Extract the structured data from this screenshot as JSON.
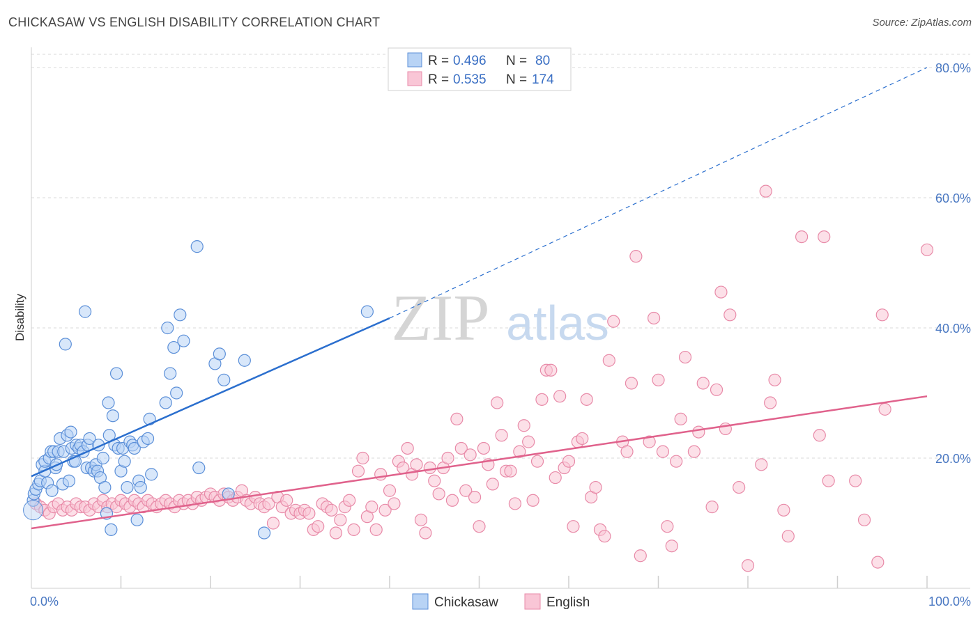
{
  "header": {
    "title": "CHICKASAW VS ENGLISH DISABILITY CORRELATION CHART",
    "source": "Source: ZipAtlas.com"
  },
  "watermark": {
    "zip": "ZIP",
    "atlas": "atlas"
  },
  "colors": {
    "blue_fill": "#b8d3f5",
    "blue_stroke": "#5b8fd8",
    "blue_line": "#2b6fce",
    "pink_fill": "#f9c6d6",
    "pink_stroke": "#e88aa8",
    "pink_line": "#e0628c",
    "grid": "#d8d8d8",
    "tick_text": "#4a78c2"
  },
  "legend": {
    "rows": [
      {
        "r_label": "R =",
        "r_value": "0.496",
        "n_label": "N =",
        "n_value": "80"
      },
      {
        "r_label": "R =",
        "r_value": "0.535",
        "n_label": "N =",
        "n_value": "174"
      }
    ]
  },
  "chart_data": {
    "type": "scatter",
    "title": "CHICKASAW VS ENGLISH DISABILITY CORRELATION CHART",
    "xlabel": "",
    "ylabel": "Disability",
    "xlim": [
      0,
      100
    ],
    "ylim": [
      0,
      82
    ],
    "x_tick_labels": [
      "0.0%",
      "100.0%"
    ],
    "y_ticks": [
      20,
      40,
      60,
      80
    ],
    "y_tick_labels": [
      "20.0%",
      "40.0%",
      "60.0%",
      "80.0%"
    ],
    "grid": true,
    "legend_position": "top-center",
    "series": [
      {
        "name": "Chickasaw",
        "R": 0.496,
        "N": 80,
        "trend": {
          "x0": 0,
          "y0": 17.2,
          "x1": 40,
          "y1": 41.5,
          "dashed_to_x": 100,
          "dashed_to_y": 80
        },
        "points": [
          [
            0.2,
            13.5
          ],
          [
            0.3,
            14.5
          ],
          [
            0.5,
            15.2
          ],
          [
            0.8,
            16.0
          ],
          [
            1.0,
            16.5
          ],
          [
            1.2,
            19.0
          ],
          [
            1.5,
            18.0
          ],
          [
            1.5,
            19.5
          ],
          [
            1.8,
            16.2
          ],
          [
            2.0,
            20.0
          ],
          [
            2.2,
            21.0
          ],
          [
            2.3,
            15.0
          ],
          [
            2.5,
            21.0
          ],
          [
            2.7,
            18.5
          ],
          [
            2.8,
            19.0
          ],
          [
            3.0,
            21.0
          ],
          [
            3.2,
            23.0
          ],
          [
            3.5,
            16.0
          ],
          [
            3.6,
            21.0
          ],
          [
            3.8,
            37.5
          ],
          [
            4.0,
            23.5
          ],
          [
            4.2,
            16.5
          ],
          [
            4.4,
            24.0
          ],
          [
            4.5,
            21.5
          ],
          [
            4.7,
            19.5
          ],
          [
            4.9,
            19.5
          ],
          [
            5.0,
            22.0
          ],
          [
            5.3,
            21.5
          ],
          [
            5.5,
            22.0
          ],
          [
            5.8,
            21.0
          ],
          [
            6.0,
            42.5
          ],
          [
            6.2,
            18.5
          ],
          [
            6.3,
            22.0
          ],
          [
            6.5,
            23.0
          ],
          [
            6.7,
            18.5
          ],
          [
            7.0,
            18.0
          ],
          [
            7.2,
            19.0
          ],
          [
            7.4,
            18.0
          ],
          [
            7.5,
            22.0
          ],
          [
            7.7,
            17.0
          ],
          [
            8.0,
            20.0
          ],
          [
            8.2,
            15.5
          ],
          [
            8.4,
            11.5
          ],
          [
            8.6,
            28.5
          ],
          [
            8.7,
            23.5
          ],
          [
            8.9,
            9.0
          ],
          [
            9.1,
            26.5
          ],
          [
            9.3,
            22.0
          ],
          [
            9.5,
            33.0
          ],
          [
            9.7,
            21.5
          ],
          [
            10.0,
            18.0
          ],
          [
            10.2,
            21.5
          ],
          [
            10.4,
            19.5
          ],
          [
            10.7,
            15.5
          ],
          [
            11.0,
            22.5
          ],
          [
            11.3,
            22.0
          ],
          [
            11.5,
            21.5
          ],
          [
            11.8,
            10.5
          ],
          [
            12.0,
            16.5
          ],
          [
            12.2,
            15.5
          ],
          [
            12.5,
            22.5
          ],
          [
            13.0,
            23.0
          ],
          [
            13.2,
            26.0
          ],
          [
            13.4,
            17.5
          ],
          [
            15.0,
            28.5
          ],
          [
            15.2,
            40.0
          ],
          [
            15.5,
            33.0
          ],
          [
            15.9,
            37.0
          ],
          [
            16.2,
            30.0
          ],
          [
            16.6,
            42.0
          ],
          [
            17.0,
            38.0
          ],
          [
            18.5,
            52.5
          ],
          [
            18.7,
            18.5
          ],
          [
            20.5,
            34.5
          ],
          [
            21.0,
            36.0
          ],
          [
            21.5,
            32.0
          ],
          [
            22.0,
            14.5
          ],
          [
            23.8,
            35.0
          ],
          [
            26.0,
            8.5
          ],
          [
            37.5,
            42.5
          ]
        ]
      },
      {
        "name": "English",
        "R": 0.535,
        "N": 174,
        "trend": {
          "x0": 0,
          "y0": 9.2,
          "x1": 100,
          "y1": 29.5
        },
        "points": [
          [
            0.5,
            13.0
          ],
          [
            1.0,
            12.5
          ],
          [
            1.5,
            12.0
          ],
          [
            2.0,
            11.5
          ],
          [
            2.5,
            12.5
          ],
          [
            3.0,
            13.0
          ],
          [
            3.5,
            12.0
          ],
          [
            4.0,
            12.5
          ],
          [
            4.5,
            12.0
          ],
          [
            5.0,
            13.0
          ],
          [
            5.5,
            12.5
          ],
          [
            6.0,
            12.5
          ],
          [
            6.5,
            12.0
          ],
          [
            7.0,
            13.0
          ],
          [
            7.5,
            12.5
          ],
          [
            8.0,
            13.5
          ],
          [
            8.5,
            12.5
          ],
          [
            9.0,
            13.0
          ],
          [
            9.5,
            12.5
          ],
          [
            10.0,
            13.5
          ],
          [
            10.5,
            13.0
          ],
          [
            11.0,
            12.5
          ],
          [
            11.5,
            13.5
          ],
          [
            12.0,
            13.0
          ],
          [
            12.5,
            12.5
          ],
          [
            13.0,
            13.5
          ],
          [
            13.5,
            13.0
          ],
          [
            14.0,
            12.5
          ],
          [
            14.5,
            13.0
          ],
          [
            15.0,
            13.5
          ],
          [
            15.5,
            13.0
          ],
          [
            16.0,
            12.5
          ],
          [
            16.5,
            13.5
          ],
          [
            17.0,
            13.0
          ],
          [
            17.5,
            13.5
          ],
          [
            18.0,
            13.0
          ],
          [
            18.5,
            14.0
          ],
          [
            19.0,
            13.5
          ],
          [
            19.5,
            14.0
          ],
          [
            20.0,
            14.5
          ],
          [
            20.5,
            14.0
          ],
          [
            21.0,
            13.5
          ],
          [
            21.5,
            14.5
          ],
          [
            22.0,
            14.0
          ],
          [
            22.5,
            13.5
          ],
          [
            23.0,
            14.0
          ],
          [
            23.5,
            15.0
          ],
          [
            24.0,
            13.5
          ],
          [
            24.5,
            13.0
          ],
          [
            25.0,
            14.0
          ],
          [
            25.5,
            13.0
          ],
          [
            26.0,
            12.5
          ],
          [
            26.5,
            13.0
          ],
          [
            27.0,
            10.0
          ],
          [
            27.5,
            14.0
          ],
          [
            28.0,
            12.5
          ],
          [
            28.5,
            13.5
          ],
          [
            29.0,
            11.5
          ],
          [
            29.5,
            12.0
          ],
          [
            30.0,
            11.5
          ],
          [
            30.5,
            12.0
          ],
          [
            31.0,
            11.5
          ],
          [
            31.5,
            9.0
          ],
          [
            32.0,
            9.5
          ],
          [
            32.5,
            13.0
          ],
          [
            33.0,
            12.5
          ],
          [
            33.5,
            12.0
          ],
          [
            34.0,
            8.5
          ],
          [
            34.5,
            10.5
          ],
          [
            35.0,
            12.5
          ],
          [
            35.5,
            13.5
          ],
          [
            36.0,
            9.0
          ],
          [
            36.5,
            18.0
          ],
          [
            37.0,
            20.0
          ],
          [
            37.5,
            11.0
          ],
          [
            38.0,
            12.5
          ],
          [
            38.5,
            9.0
          ],
          [
            39.0,
            17.5
          ],
          [
            39.5,
            12.0
          ],
          [
            40.0,
            15.0
          ],
          [
            40.5,
            13.0
          ],
          [
            41.0,
            19.5
          ],
          [
            41.5,
            18.5
          ],
          [
            42.0,
            21.5
          ],
          [
            42.5,
            17.5
          ],
          [
            43.0,
            19.0
          ],
          [
            43.5,
            10.5
          ],
          [
            44.0,
            8.5
          ],
          [
            44.5,
            18.5
          ],
          [
            45.0,
            16.5
          ],
          [
            45.5,
            14.5
          ],
          [
            46.0,
            18.5
          ],
          [
            46.5,
            20.0
          ],
          [
            47.0,
            13.5
          ],
          [
            47.5,
            26.0
          ],
          [
            48.0,
            21.5
          ],
          [
            48.5,
            15.0
          ],
          [
            49.0,
            20.5
          ],
          [
            49.5,
            14.0
          ],
          [
            50.0,
            9.5
          ],
          [
            50.5,
            21.5
          ],
          [
            51.0,
            19.0
          ],
          [
            51.5,
            16.0
          ],
          [
            52.0,
            28.5
          ],
          [
            52.5,
            23.5
          ],
          [
            53.0,
            18.0
          ],
          [
            53.5,
            18.0
          ],
          [
            54.0,
            13.0
          ],
          [
            54.5,
            21.0
          ],
          [
            55.0,
            25.0
          ],
          [
            55.5,
            22.5
          ],
          [
            56.0,
            13.5
          ],
          [
            56.5,
            19.5
          ],
          [
            57.0,
            29.0
          ],
          [
            57.5,
            33.5
          ],
          [
            58.0,
            33.5
          ],
          [
            58.5,
            17.0
          ],
          [
            59.0,
            29.5
          ],
          [
            59.5,
            18.5
          ],
          [
            60.0,
            19.5
          ],
          [
            60.5,
            9.5
          ],
          [
            61.0,
            22.5
          ],
          [
            61.5,
            23.0
          ],
          [
            62.0,
            29.0
          ],
          [
            62.5,
            14.0
          ],
          [
            63.0,
            15.5
          ],
          [
            63.5,
            9.0
          ],
          [
            64.0,
            8.0
          ],
          [
            64.5,
            35.0
          ],
          [
            65.0,
            41.0
          ],
          [
            66.0,
            22.5
          ],
          [
            66.5,
            21.0
          ],
          [
            67.0,
            31.5
          ],
          [
            67.5,
            51.0
          ],
          [
            68.0,
            5.0
          ],
          [
            69.0,
            22.5
          ],
          [
            69.5,
            41.5
          ],
          [
            70.0,
            32.0
          ],
          [
            70.5,
            21.0
          ],
          [
            71.0,
            9.5
          ],
          [
            71.5,
            6.5
          ],
          [
            72.0,
            19.5
          ],
          [
            72.5,
            26.0
          ],
          [
            73.0,
            35.5
          ],
          [
            74.0,
            21.0
          ],
          [
            74.5,
            24.0
          ],
          [
            75.0,
            31.5
          ],
          [
            76.0,
            12.5
          ],
          [
            76.5,
            30.5
          ],
          [
            77.0,
            45.5
          ],
          [
            77.5,
            24.5
          ],
          [
            78.0,
            42.0
          ],
          [
            79.0,
            15.5
          ],
          [
            80.0,
            3.5
          ],
          [
            81.5,
            19.0
          ],
          [
            82.0,
            61.0
          ],
          [
            82.5,
            28.5
          ],
          [
            83.0,
            32.0
          ],
          [
            84.0,
            12.0
          ],
          [
            84.5,
            8.0
          ],
          [
            86.0,
            54.0
          ],
          [
            88.0,
            23.5
          ],
          [
            88.5,
            54.0
          ],
          [
            89.0,
            16.5
          ],
          [
            92.0,
            16.5
          ],
          [
            93.0,
            10.5
          ],
          [
            94.5,
            4.0
          ],
          [
            95.0,
            42.0
          ],
          [
            95.3,
            27.5
          ],
          [
            100,
            52.0
          ]
        ]
      }
    ]
  },
  "bottom_legend": [
    {
      "label": "Chickasaw"
    },
    {
      "label": "English"
    }
  ]
}
